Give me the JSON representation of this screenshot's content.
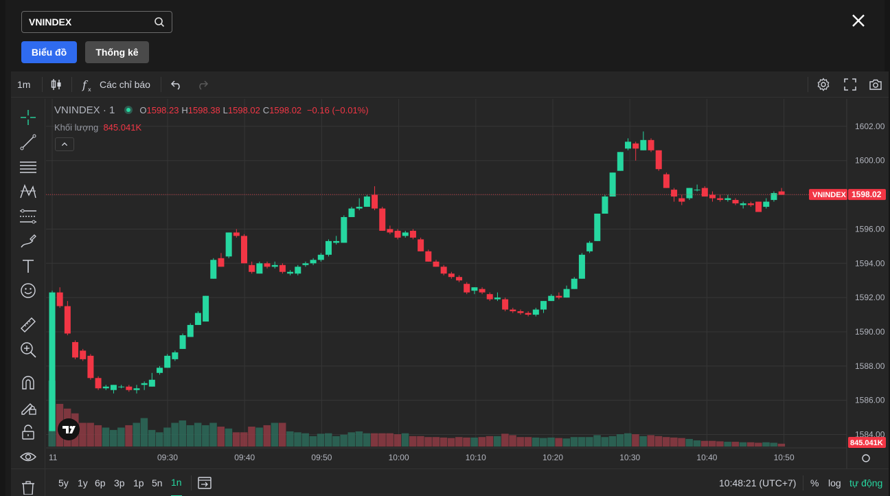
{
  "search": {
    "value": "VNINDEX"
  },
  "tabs": [
    {
      "label": "Biểu đồ",
      "active": true
    },
    {
      "label": "Thống kê",
      "active": false
    }
  ],
  "toolbar": {
    "interval": "1m",
    "indicators_label": "Các chỉ báo"
  },
  "legend": {
    "symbol": "VNINDEX · 1",
    "o_key": "O",
    "o": "1598.23",
    "h_key": "H",
    "h": "1598.38",
    "l_key": "L",
    "l": "1598.02",
    "c_key": "C",
    "c": "1598.02",
    "change": "−0.16 (−0.01%)",
    "volume_label": "Khối lượng",
    "volume_value": "845.041K"
  },
  "price_axis": {
    "ticks": [
      "1602.00",
      "1600.00",
      "1598.00",
      "1596.00",
      "1594.00",
      "1592.00",
      "1590.00",
      "1588.00",
      "1586.00",
      "1584.00"
    ],
    "last_symbol_label": "VNINDEX",
    "last_price_label": "1598.02",
    "last_volume_label": "845.041K"
  },
  "time_axis": {
    "ticks": [
      "11",
      "09:30",
      "09:40",
      "09:50",
      "10:00",
      "10:10",
      "10:20",
      "10:30",
      "10:40",
      "10:50"
    ]
  },
  "bottom": {
    "ranges": [
      {
        "label": "5y",
        "active": false
      },
      {
        "label": "1y",
        "active": false
      },
      {
        "label": "6p",
        "active": false
      },
      {
        "label": "3p",
        "active": false
      },
      {
        "label": "1p",
        "active": false
      },
      {
        "label": "5n",
        "active": false
      },
      {
        "label": "1n",
        "active": true
      }
    ],
    "clock": "10:48:21 (UTC+7)",
    "percent_label": "%",
    "log_label": "log",
    "auto_label": "tự động"
  },
  "colors": {
    "up": "#26d7a0",
    "down": "#f23645",
    "background": "#262626",
    "grid": "#363636"
  },
  "chart_data": {
    "type": "candlestick",
    "series": [
      {
        "o": 1584.2,
        "h": 1592.4,
        "l": 1584.2,
        "c": 1592.3
      },
      {
        "o": 1592.3,
        "h": 1592.6,
        "l": 1591.4,
        "c": 1591.5
      },
      {
        "o": 1591.5,
        "h": 1591.8,
        "l": 1589.8,
        "c": 1589.9
      },
      {
        "o": 1589.4,
        "h": 1589.5,
        "l": 1588.4,
        "c": 1588.5
      },
      {
        "o": 1588.9,
        "h": 1589.0,
        "l": 1588.3,
        "c": 1588.4
      },
      {
        "o": 1588.6,
        "h": 1588.7,
        "l": 1587.2,
        "c": 1587.3
      },
      {
        "o": 1587.3,
        "h": 1587.4,
        "l": 1586.6,
        "c": 1586.7
      },
      {
        "o": 1586.7,
        "h": 1586.9,
        "l": 1586.6,
        "c": 1586.8
      },
      {
        "o": 1586.6,
        "h": 1586.9,
        "l": 1586.4,
        "c": 1586.9
      },
      {
        "o": 1586.8,
        "h": 1586.9,
        "l": 1586.7,
        "c": 1586.8
      },
      {
        "o": 1586.8,
        "h": 1586.9,
        "l": 1586.5,
        "c": 1586.6
      },
      {
        "o": 1586.6,
        "h": 1586.9,
        "l": 1586.4,
        "c": 1586.7
      },
      {
        "o": 1586.9,
        "h": 1587.1,
        "l": 1586.6,
        "c": 1587.0
      },
      {
        "o": 1586.8,
        "h": 1587.6,
        "l": 1586.8,
        "c": 1587.2
      },
      {
        "o": 1587.6,
        "h": 1588.0,
        "l": 1587.5,
        "c": 1587.9
      },
      {
        "o": 1587.9,
        "h": 1588.7,
        "l": 1587.9,
        "c": 1588.6
      },
      {
        "o": 1588.4,
        "h": 1588.9,
        "l": 1588.3,
        "c": 1588.8
      },
      {
        "o": 1589.0,
        "h": 1589.9,
        "l": 1589.0,
        "c": 1589.8
      },
      {
        "o": 1589.7,
        "h": 1590.5,
        "l": 1589.7,
        "c": 1590.4
      },
      {
        "o": 1590.4,
        "h": 1591.2,
        "l": 1590.4,
        "c": 1591.1
      },
      {
        "o": 1590.6,
        "h": 1592.1,
        "l": 1590.6,
        "c": 1592.1
      },
      {
        "o": 1593.1,
        "h": 1594.3,
        "l": 1593.1,
        "c": 1594.2
      },
      {
        "o": 1594.3,
        "h": 1594.6,
        "l": 1593.8,
        "c": 1593.8
      },
      {
        "o": 1594.4,
        "h": 1595.8,
        "l": 1594.3,
        "c": 1595.8
      },
      {
        "o": 1595.8,
        "h": 1596.0,
        "l": 1595.5,
        "c": 1595.6
      },
      {
        "o": 1595.6,
        "h": 1595.7,
        "l": 1594.0,
        "c": 1594.0
      },
      {
        "o": 1593.9,
        "h": 1594.1,
        "l": 1593.4,
        "c": 1593.5
      },
      {
        "o": 1593.4,
        "h": 1594.1,
        "l": 1593.4,
        "c": 1594.0
      },
      {
        "o": 1594.0,
        "h": 1594.1,
        "l": 1593.7,
        "c": 1593.8
      },
      {
        "o": 1593.8,
        "h": 1594.1,
        "l": 1593.7,
        "c": 1593.9
      },
      {
        "o": 1593.9,
        "h": 1594.0,
        "l": 1593.4,
        "c": 1593.5
      },
      {
        "o": 1593.4,
        "h": 1593.6,
        "l": 1593.3,
        "c": 1593.5
      },
      {
        "o": 1593.4,
        "h": 1593.9,
        "l": 1593.3,
        "c": 1593.8
      },
      {
        "o": 1593.9,
        "h": 1594.1,
        "l": 1593.8,
        "c": 1594.0
      },
      {
        "o": 1594.0,
        "h": 1594.3,
        "l": 1593.9,
        "c": 1594.2
      },
      {
        "o": 1594.2,
        "h": 1594.6,
        "l": 1594.1,
        "c": 1594.5
      },
      {
        "o": 1594.5,
        "h": 1595.4,
        "l": 1594.4,
        "c": 1595.3
      },
      {
        "o": 1595.2,
        "h": 1595.6,
        "l": 1595.1,
        "c": 1595.3
      },
      {
        "o": 1595.2,
        "h": 1596.8,
        "l": 1595.2,
        "c": 1596.7
      },
      {
        "o": 1596.7,
        "h": 1597.3,
        "l": 1596.7,
        "c": 1597.2
      },
      {
        "o": 1597.2,
        "h": 1597.8,
        "l": 1597.1,
        "c": 1597.3
      },
      {
        "o": 1597.3,
        "h": 1598.0,
        "l": 1597.3,
        "c": 1597.9
      },
      {
        "o": 1598.0,
        "h": 1598.5,
        "l": 1597.1,
        "c": 1597.2
      },
      {
        "o": 1597.2,
        "h": 1597.3,
        "l": 1595.9,
        "c": 1595.9
      },
      {
        "o": 1596.0,
        "h": 1596.2,
        "l": 1595.7,
        "c": 1595.8
      },
      {
        "o": 1595.9,
        "h": 1596.0,
        "l": 1595.4,
        "c": 1595.5
      },
      {
        "o": 1595.6,
        "h": 1595.9,
        "l": 1595.5,
        "c": 1595.8
      },
      {
        "o": 1595.9,
        "h": 1596.0,
        "l": 1595.4,
        "c": 1595.5
      },
      {
        "o": 1595.4,
        "h": 1595.5,
        "l": 1594.7,
        "c": 1594.7
      },
      {
        "o": 1594.7,
        "h": 1594.8,
        "l": 1594.1,
        "c": 1594.1
      },
      {
        "o": 1594.1,
        "h": 1594.2,
        "l": 1593.8,
        "c": 1593.8
      },
      {
        "o": 1593.8,
        "h": 1593.9,
        "l": 1593.3,
        "c": 1593.4
      },
      {
        "o": 1593.4,
        "h": 1593.5,
        "l": 1593.1,
        "c": 1593.2
      },
      {
        "o": 1593.2,
        "h": 1593.3,
        "l": 1592.9,
        "c": 1593.0
      },
      {
        "o": 1592.8,
        "h": 1592.9,
        "l": 1592.2,
        "c": 1592.3
      },
      {
        "o": 1592.4,
        "h": 1592.6,
        "l": 1592.2,
        "c": 1592.6
      },
      {
        "o": 1592.5,
        "h": 1592.6,
        "l": 1592.2,
        "c": 1592.3
      },
      {
        "o": 1592.2,
        "h": 1592.3,
        "l": 1591.8,
        "c": 1591.9
      },
      {
        "o": 1591.9,
        "h": 1592.3,
        "l": 1591.8,
        "c": 1592.0
      },
      {
        "o": 1591.9,
        "h": 1592.0,
        "l": 1591.2,
        "c": 1591.3
      },
      {
        "o": 1591.3,
        "h": 1591.4,
        "l": 1591.1,
        "c": 1591.2
      },
      {
        "o": 1591.2,
        "h": 1591.3,
        "l": 1591.0,
        "c": 1591.1
      },
      {
        "o": 1591.1,
        "h": 1591.2,
        "l": 1590.9,
        "c": 1591.0
      },
      {
        "o": 1591.0,
        "h": 1591.4,
        "l": 1590.9,
        "c": 1591.3
      },
      {
        "o": 1591.3,
        "h": 1591.8,
        "l": 1591.1,
        "c": 1591.8
      },
      {
        "o": 1591.8,
        "h": 1592.2,
        "l": 1591.8,
        "c": 1592.1
      },
      {
        "o": 1592.1,
        "h": 1592.3,
        "l": 1591.9,
        "c": 1592.0
      },
      {
        "o": 1592.0,
        "h": 1592.7,
        "l": 1592.0,
        "c": 1592.5
      },
      {
        "o": 1592.5,
        "h": 1593.2,
        "l": 1592.5,
        "c": 1593.1
      },
      {
        "o": 1593.1,
        "h": 1594.6,
        "l": 1593.1,
        "c": 1594.5
      },
      {
        "o": 1594.7,
        "h": 1595.3,
        "l": 1594.6,
        "c": 1595.2
      },
      {
        "o": 1595.3,
        "h": 1596.9,
        "l": 1595.3,
        "c": 1596.9
      },
      {
        "o": 1596.9,
        "h": 1598.0,
        "l": 1596.9,
        "c": 1597.9
      },
      {
        "o": 1597.9,
        "h": 1599.3,
        "l": 1597.9,
        "c": 1599.3
      },
      {
        "o": 1599.4,
        "h": 1600.5,
        "l": 1599.4,
        "c": 1600.5
      },
      {
        "o": 1600.7,
        "h": 1601.3,
        "l": 1600.6,
        "c": 1601.1
      },
      {
        "o": 1601.0,
        "h": 1601.1,
        "l": 1600.0,
        "c": 1600.7
      },
      {
        "o": 1600.6,
        "h": 1601.7,
        "l": 1600.6,
        "c": 1601.2
      },
      {
        "o": 1601.2,
        "h": 1601.3,
        "l": 1600.5,
        "c": 1600.6
      },
      {
        "o": 1600.6,
        "h": 1600.6,
        "l": 1599.4,
        "c": 1599.5
      },
      {
        "o": 1599.2,
        "h": 1599.3,
        "l": 1598.4,
        "c": 1598.4
      },
      {
        "o": 1598.3,
        "h": 1598.4,
        "l": 1597.6,
        "c": 1597.9
      },
      {
        "o": 1597.8,
        "h": 1598.0,
        "l": 1597.4,
        "c": 1597.6
      },
      {
        "o": 1597.8,
        "h": 1598.4,
        "l": 1597.7,
        "c": 1598.4
      },
      {
        "o": 1598.3,
        "h": 1598.6,
        "l": 1598.2,
        "c": 1598.3
      },
      {
        "o": 1598.4,
        "h": 1598.5,
        "l": 1597.9,
        "c": 1597.9
      },
      {
        "o": 1598.0,
        "h": 1598.2,
        "l": 1597.6,
        "c": 1597.8
      },
      {
        "o": 1597.8,
        "h": 1598.0,
        "l": 1597.6,
        "c": 1597.7
      },
      {
        "o": 1597.7,
        "h": 1598.0,
        "l": 1597.6,
        "c": 1597.8
      },
      {
        "o": 1597.7,
        "h": 1597.8,
        "l": 1597.4,
        "c": 1597.5
      },
      {
        "o": 1597.4,
        "h": 1597.6,
        "l": 1597.2,
        "c": 1597.5
      },
      {
        "o": 1597.5,
        "h": 1597.6,
        "l": 1597.3,
        "c": 1597.4
      },
      {
        "o": 1597.6,
        "h": 1597.6,
        "l": 1597.0,
        "c": 1597.0
      },
      {
        "o": 1597.3,
        "h": 1597.8,
        "l": 1597.2,
        "c": 1597.6
      },
      {
        "o": 1597.7,
        "h": 1598.2,
        "l": 1597.6,
        "c": 1598.1
      },
      {
        "o": 1598.2,
        "h": 1598.4,
        "l": 1598.0,
        "c": 1598.0
      }
    ],
    "volume": [
      1.6,
      0.9,
      0.8,
      0.7,
      0.5,
      0.5,
      0.45,
      0.4,
      0.35,
      0.4,
      0.45,
      0.5,
      0.6,
      0.35,
      0.3,
      0.4,
      0.5,
      0.55,
      0.45,
      0.5,
      0.45,
      0.5,
      0.42,
      0.38,
      0.3,
      0.3,
      0.42,
      0.4,
      0.45,
      0.5,
      0.5,
      0.32,
      0.3,
      0.28,
      0.22,
      0.27,
      0.28,
      0.22,
      0.25,
      0.3,
      0.32,
      0.28,
      0.28,
      0.28,
      0.28,
      0.26,
      0.28,
      0.22,
      0.22,
      0.2,
      0.2,
      0.19,
      0.18,
      0.2,
      0.19,
      0.19,
      0.2,
      0.22,
      0.22,
      0.27,
      0.24,
      0.2,
      0.2,
      0.19,
      0.18,
      0.19,
      0.18,
      0.17,
      0.2,
      0.2,
      0.2,
      0.24,
      0.2,
      0.22,
      0.26,
      0.28,
      0.26,
      0.22,
      0.24,
      0.22,
      0.2,
      0.19,
      0.18,
      0.16,
      0.13,
      0.12,
      0.12,
      0.11,
      0.1,
      0.1,
      0.09,
      0.09,
      0.08,
      0.09,
      0.08,
      0.06
    ],
    "y_range": [
      1583.3,
      1603.6
    ],
    "x_ticks": [
      "11",
      "09:30",
      "09:40",
      "09:50",
      "10:00",
      "10:10",
      "10:20",
      "10:30",
      "10:40",
      "10:50"
    ],
    "last_price": 1598.02,
    "grid": true
  }
}
